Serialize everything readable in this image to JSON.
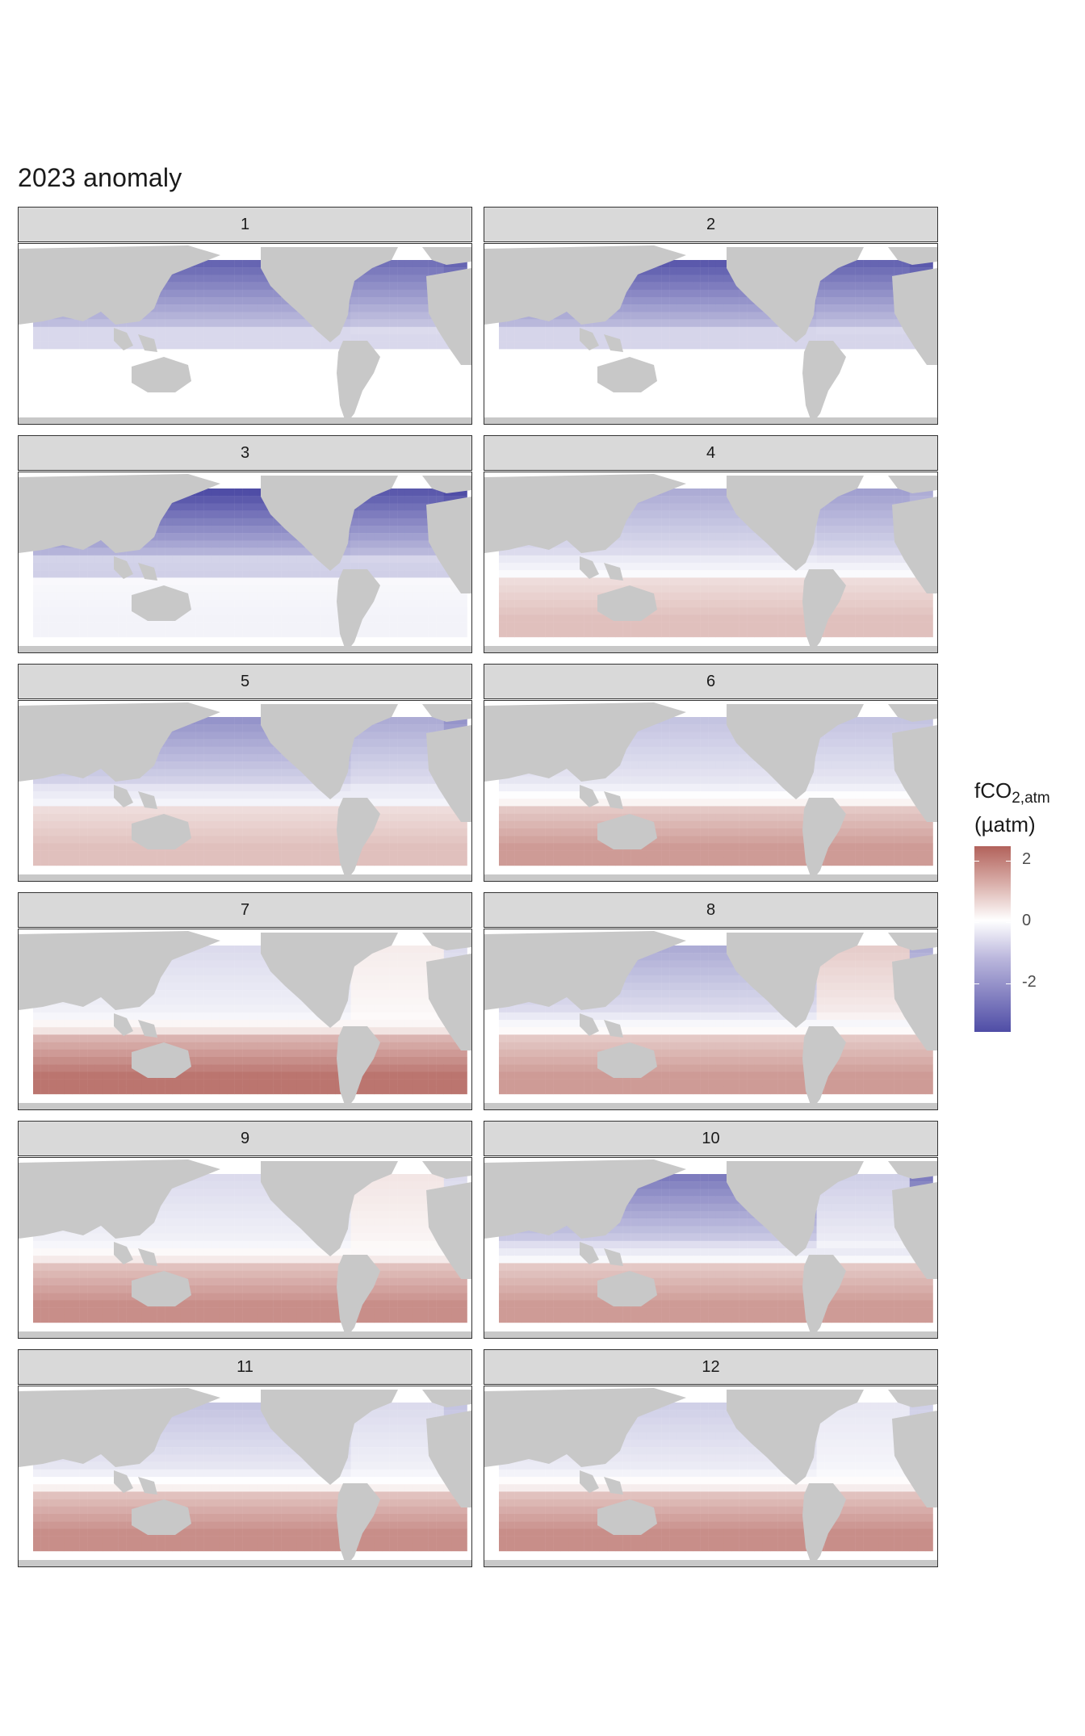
{
  "title": "2023 anomaly",
  "panels": [
    {
      "label": "1"
    },
    {
      "label": "2"
    },
    {
      "label": "3"
    },
    {
      "label": "4"
    },
    {
      "label": "5"
    },
    {
      "label": "6"
    },
    {
      "label": "7"
    },
    {
      "label": "8"
    },
    {
      "label": "9"
    },
    {
      "label": "10"
    },
    {
      "label": "11"
    },
    {
      "label": "12"
    }
  ],
  "legend": {
    "title_main": "fCO",
    "title_sub": "2,atm",
    "unit": "(µatm)",
    "ticks": [
      "2",
      "0",
      "-2"
    ],
    "colors": {
      "high": "#b2625b",
      "mid": "#ffffff",
      "low": "#4f4da6",
      "land": "#c8c8c8",
      "strip": "#d9d9d9"
    }
  },
  "chart_data": {
    "type": "heatmap",
    "variable": "fCO2,atm anomaly",
    "unit": "µatm",
    "facets": [
      "1",
      "2",
      "3",
      "4",
      "5",
      "6",
      "7",
      "8",
      "9",
      "10",
      "11",
      "12"
    ],
    "color_range": [
      -3,
      2.5
    ],
    "monthly_anomaly": [
      {
        "month": "1",
        "north_pacific": -2.6,
        "north_atlantic": -2.4,
        "southern_band": 0.0
      },
      {
        "month": "2",
        "north_pacific": -2.8,
        "north_atlantic": -2.6,
        "southern_band": 0.0
      },
      {
        "month": "3",
        "north_pacific": -3.0,
        "north_atlantic": -2.8,
        "southern_band": -0.2
      },
      {
        "month": "4",
        "north_pacific": -1.4,
        "north_atlantic": -1.6,
        "southern_band": 1.0
      },
      {
        "month": "5",
        "north_pacific": -1.8,
        "north_atlantic": -1.4,
        "southern_band": 1.0
      },
      {
        "month": "6",
        "north_pacific": -1.0,
        "north_atlantic": -1.0,
        "southern_band": 1.6
      },
      {
        "month": "7",
        "north_pacific": -0.6,
        "north_atlantic": 0.3,
        "southern_band": 2.2
      },
      {
        "month": "8",
        "north_pacific": -1.4,
        "north_atlantic": 0.8,
        "southern_band": 1.6
      },
      {
        "month": "9",
        "north_pacific": -0.6,
        "north_atlantic": 0.4,
        "southern_band": 1.8
      },
      {
        "month": "10",
        "north_pacific": -2.2,
        "north_atlantic": -0.8,
        "southern_band": 1.6
      },
      {
        "month": "11",
        "north_pacific": -1.0,
        "north_atlantic": -0.6,
        "southern_band": 1.8
      },
      {
        "month": "12",
        "north_pacific": -0.8,
        "north_atlantic": -0.4,
        "southern_band": 1.8
      }
    ]
  }
}
